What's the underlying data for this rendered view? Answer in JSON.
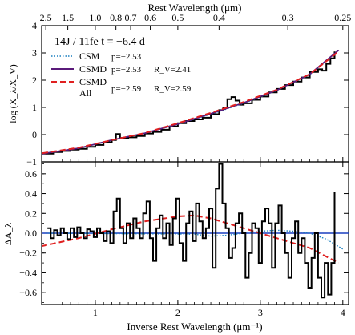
{
  "chart_data": [
    {
      "type": "line",
      "panel": "top",
      "annotation": "14J / 11fe  t = −6.4 d",
      "ylabel": "log (X_λ/X_V)",
      "top_axis_label": "Rest Wavelength (μm)",
      "top_ticks": [
        {
          "label": "2.5",
          "x": 0.4
        },
        {
          "label": "1.5",
          "x": 0.6667
        },
        {
          "label": "1.0",
          "x": 1.0
        },
        {
          "label": "0.8",
          "x": 1.25
        },
        {
          "label": "0.7",
          "x": 1.4286
        },
        {
          "label": "0.6",
          "x": 1.6667
        },
        {
          "label": "0.5",
          "x": 2.0
        },
        {
          "label": "0.4",
          "x": 2.5
        },
        {
          "label": "0.3",
          "x": 3.3333
        },
        {
          "label": "0.25",
          "x": 4.0
        }
      ],
      "xlim": [
        0.35,
        4.07
      ],
      "ylim": [
        -1.0,
        4.0
      ],
      "yticks": [
        {
          "label": "−1",
          "y": -1
        },
        {
          "label": "0",
          "y": 0
        },
        {
          "label": "1",
          "y": 1
        },
        {
          "label": "2",
          "y": 2
        },
        {
          "label": "3",
          "y": 3
        },
        {
          "label": "4",
          "y": 4
        }
      ],
      "legend": [
        {
          "name": "CSM",
          "fit": "p=−2.53",
          "rv": "",
          "color": "#1a7fbf",
          "dash": "dotted"
        },
        {
          "name": "CSMD",
          "fit": "p=−2.53",
          "rv": "R_V=2.41",
          "color": "#5a1a7a",
          "dash": "solid"
        },
        {
          "name": "CSMD",
          "name2": "All",
          "fit": "p=−2.59",
          "rv": "R_V=2.59",
          "color": "#e02020",
          "dash": "dashed"
        }
      ],
      "observed": {
        "x": [
          0.36,
          0.5,
          0.6,
          0.7,
          0.8,
          0.9,
          1.0,
          1.1,
          1.2,
          1.25,
          1.3,
          1.4,
          1.5,
          1.6,
          1.7,
          1.8,
          1.9,
          2.0,
          2.1,
          2.2,
          2.3,
          2.4,
          2.5,
          2.55,
          2.6,
          2.65,
          2.7,
          2.75,
          2.8,
          2.9,
          3.0,
          3.1,
          3.2,
          3.3,
          3.4,
          3.5,
          3.6,
          3.7,
          3.75,
          3.8,
          3.85,
          3.9
        ],
        "y": [
          -0.7,
          -0.64,
          -0.6,
          -0.55,
          -0.52,
          -0.45,
          -0.38,
          -0.28,
          -0.2,
          0.02,
          -0.12,
          -0.1,
          -0.05,
          0.04,
          0.1,
          0.18,
          0.3,
          0.42,
          0.5,
          0.56,
          0.62,
          0.75,
          0.9,
          1.0,
          1.3,
          1.38,
          1.25,
          1.1,
          1.15,
          1.28,
          1.4,
          1.55,
          1.68,
          1.82,
          1.95,
          2.1,
          2.3,
          2.4,
          2.35,
          2.6,
          2.8,
          3.05
        ]
      },
      "series": [
        {
          "name": "CSM",
          "x": [
            0.36,
            0.8,
            1.2,
            1.6,
            2.0,
            2.4,
            2.8,
            3.2,
            3.6,
            3.95
          ],
          "y": [
            -0.7,
            -0.5,
            -0.2,
            0.06,
            0.38,
            0.75,
            1.15,
            1.62,
            2.2,
            3.1
          ]
        },
        {
          "name": "CSMD",
          "x": [
            0.36,
            0.8,
            1.2,
            1.6,
            2.0,
            2.4,
            2.8,
            3.2,
            3.6,
            3.95
          ],
          "y": [
            -0.7,
            -0.5,
            -0.2,
            0.05,
            0.39,
            0.77,
            1.17,
            1.63,
            2.22,
            3.1
          ]
        },
        {
          "name": "CSMD All",
          "x": [
            0.36,
            0.8,
            1.2,
            1.6,
            2.0,
            2.4,
            2.8,
            3.2,
            3.6,
            3.95
          ],
          "y": [
            -0.68,
            -0.48,
            -0.2,
            0.06,
            0.42,
            0.8,
            1.2,
            1.65,
            2.22,
            3.05
          ]
        }
      ]
    },
    {
      "type": "line",
      "panel": "bottom",
      "xlabel": "Inverse Rest Wavelength (μm⁻¹)",
      "ylabel": "ΔA_λ",
      "xlim": [
        0.35,
        4.07
      ],
      "ylim": [
        -0.72,
        0.72
      ],
      "xticks": [
        {
          "label": "1",
          "x": 1
        },
        {
          "label": "2",
          "x": 2
        },
        {
          "label": "3",
          "x": 3
        },
        {
          "label": "4",
          "x": 4
        }
      ],
      "yticks": [
        {
          "label": "0.6",
          "y": 0.6
        },
        {
          "label": "0.4",
          "y": 0.4
        },
        {
          "label": "0.2",
          "y": 0.2
        },
        {
          "label": "0.0",
          "y": 0.0
        },
        {
          "label": "−0.2",
          "y": -0.2
        },
        {
          "label": "−0.4",
          "y": -0.4
        },
        {
          "label": "−0.6",
          "y": -0.6
        }
      ],
      "residual": {
        "x": [
          0.42,
          0.46,
          0.5,
          0.54,
          0.58,
          0.62,
          0.66,
          0.7,
          0.74,
          0.78,
          0.82,
          0.86,
          0.9,
          0.94,
          0.98,
          1.02,
          1.06,
          1.1,
          1.14,
          1.18,
          1.22,
          1.26,
          1.3,
          1.34,
          1.38,
          1.42,
          1.46,
          1.5,
          1.54,
          1.58,
          1.62,
          1.66,
          1.7,
          1.74,
          1.78,
          1.82,
          1.86,
          1.9,
          1.94,
          1.98,
          2.02,
          2.06,
          2.1,
          2.14,
          2.18,
          2.22,
          2.26,
          2.3,
          2.34,
          2.38,
          2.42,
          2.46,
          2.5,
          2.54,
          2.58,
          2.62,
          2.66,
          2.7,
          2.74,
          2.78,
          2.82,
          2.86,
          2.9,
          2.94,
          2.98,
          3.02,
          3.06,
          3.1,
          3.14,
          3.18,
          3.22,
          3.26,
          3.3,
          3.34,
          3.38,
          3.42,
          3.46,
          3.5,
          3.54,
          3.58,
          3.62,
          3.66,
          3.7,
          3.74,
          3.78,
          3.82,
          3.86,
          3.9
        ],
        "y": [
          0.05,
          -0.05,
          0.03,
          -0.02,
          0.05,
          0.0,
          -0.06,
          0.05,
          -0.04,
          0.06,
          0.0,
          -0.05,
          0.04,
          0.02,
          -0.04,
          0.05,
          0.0,
          -0.08,
          0.02,
          -0.1,
          0.22,
          0.35,
          0.05,
          -0.1,
          0.1,
          -0.05,
          0.15,
          0.05,
          -0.05,
          0.2,
          0.32,
          -0.05,
          -0.28,
          0.05,
          0.18,
          -0.05,
          0.1,
          -0.12,
          0.15,
          0.35,
          -0.1,
          -0.28,
          0.1,
          0.22,
          -0.08,
          0.3,
          0.12,
          -0.05,
          0.05,
          0.25,
          -0.35,
          0.45,
          0.7,
          0.3,
          0.05,
          -0.25,
          -0.15,
          0.1,
          0.2,
          0.0,
          -0.45,
          -0.2,
          0.1,
          0.05,
          -0.3,
          0.12,
          0.25,
          0.1,
          -0.35,
          0.1,
          0.28,
          0.0,
          -0.2,
          -0.45,
          -0.05,
          0.12,
          -0.2,
          -0.05,
          -0.3,
          -0.55,
          -0.25,
          0.0,
          -0.45,
          -0.65,
          -0.3,
          -0.62,
          -0.3,
          0.42
        ]
      },
      "series": [
        {
          "name": "zero",
          "x": [
            0.35,
            4.07
          ],
          "y": [
            0,
            0
          ]
        },
        {
          "name": "CSM",
          "x": [
            0.4,
            2.2,
            2.4,
            2.6,
            2.8,
            3.0,
            3.2,
            3.4,
            3.6,
            3.8,
            4.0
          ],
          "y": [
            0,
            -0.01,
            -0.03,
            -0.02,
            0.0,
            0.02,
            0.03,
            0.02,
            0.0,
            -0.06,
            -0.16
          ]
        },
        {
          "name": "CSMD All",
          "x": [
            0.35,
            0.8,
            1.2,
            1.6,
            2.0,
            2.2,
            2.4,
            2.8,
            3.2,
            3.6,
            3.95
          ],
          "y": [
            -0.13,
            -0.05,
            0.04,
            0.12,
            0.17,
            0.18,
            0.15,
            0.05,
            -0.05,
            -0.15,
            -0.3
          ]
        }
      ]
    }
  ]
}
